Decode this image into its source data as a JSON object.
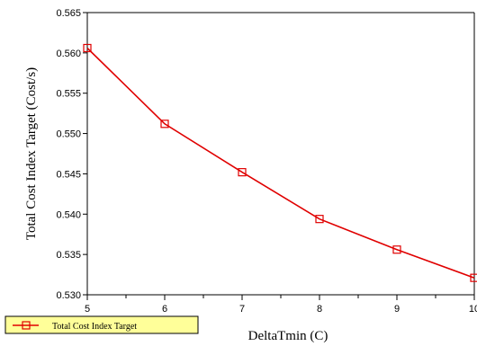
{
  "chart_data": {
    "type": "line",
    "xlabel": "DeltaTmin (C)",
    "ylabel": "Total Cost Index Target (Cost/s)",
    "xlim": [
      5,
      10
    ],
    "ylim": [
      0.53,
      0.565
    ],
    "x_ticks": [
      "5",
      "6",
      "7",
      "8",
      "9",
      "10"
    ],
    "y_ticks": [
      "0.530",
      "0.535",
      "0.540",
      "0.545",
      "0.550",
      "0.555",
      "0.560",
      "0.565"
    ],
    "grid": false,
    "legend_position": "bottom-left",
    "series": [
      {
        "name": "Total Cost Index Target",
        "color": "#e00000",
        "marker": "open-square",
        "x": [
          5,
          6,
          7,
          8,
          9,
          10
        ],
        "y": [
          0.5606,
          0.5512,
          0.5452,
          0.5394,
          0.5356,
          0.5321
        ]
      }
    ]
  },
  "colors": {
    "line": "#e00000",
    "legend_fill": "#ffff99",
    "axis": "#000000"
  }
}
